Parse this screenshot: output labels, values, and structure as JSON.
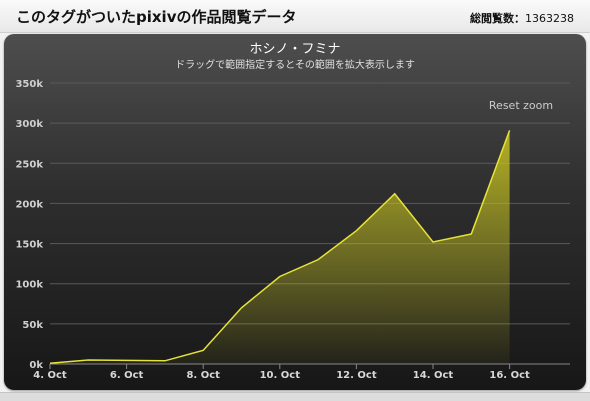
{
  "header": {
    "title": "このタグがついたpixivの作品閲覧データ",
    "views_label": "総閲覧数：",
    "views_value": "1363238"
  },
  "chart_controls": {
    "reset_zoom_label": "Reset zoom"
  },
  "colors": {
    "series_line": "#e6e33a",
    "series_fill": "#c8c41f"
  },
  "chart_data": {
    "type": "area",
    "title": "ホシノ・フミナ",
    "subtitle": "ドラッグで範囲指定するとその範囲を拡大表示します",
    "xlabel": "",
    "ylabel": "",
    "x": [
      "4. Oct",
      "5. Oct",
      "6. Oct",
      "7. Oct",
      "8. Oct",
      "9. Oct",
      "10. Oct",
      "11. Oct",
      "12. Oct",
      "13. Oct",
      "14. Oct",
      "15. Oct",
      "16. Oct"
    ],
    "x_tick_labels": [
      "4. Oct",
      "6. Oct",
      "8. Oct",
      "10. Oct",
      "12. Oct",
      "14. Oct",
      "16. Oct"
    ],
    "series": [
      {
        "values": [
          1000,
          5000,
          4500,
          4000,
          17000,
          70000,
          109000,
          130000,
          166000,
          212000,
          152000,
          162000,
          291000
        ]
      }
    ],
    "ylim": [
      0,
      350000
    ],
    "y_tick_labels": [
      "0k",
      "50k",
      "100k",
      "150k",
      "200k",
      "250k",
      "300k",
      "350k"
    ],
    "grid": true,
    "legend": "none"
  }
}
